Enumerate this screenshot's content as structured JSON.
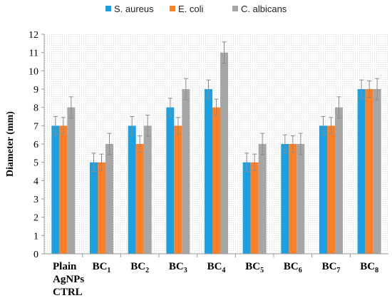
{
  "chart_data": {
    "type": "bar",
    "ylabel": "Diameter (mm)",
    "xlabel": "",
    "ylim": [
      0,
      12
    ],
    "yticks": [
      "0",
      "1",
      "2",
      "3",
      "4",
      "5",
      "6",
      "7",
      "8",
      "9",
      "10",
      "11",
      "12"
    ],
    "legend_position": "top",
    "grid": false,
    "categories": [
      {
        "lines": [
          "Plain",
          "AgNPs",
          "CTRL"
        ]
      },
      {
        "base": "BC",
        "sub": "1"
      },
      {
        "base": "BC",
        "sub": "2"
      },
      {
        "base": "BC",
        "sub": "3"
      },
      {
        "base": "BC",
        "sub": "4"
      },
      {
        "base": "BC",
        "sub": "5"
      },
      {
        "base": "BC",
        "sub": "6"
      },
      {
        "base": "BC",
        "sub": "7"
      },
      {
        "base": "BC",
        "sub": "8"
      }
    ],
    "series": [
      {
        "name": "S. aureus",
        "color": "#1BA1E2",
        "values": [
          7,
          5,
          7,
          8,
          9,
          5,
          6,
          7,
          9
        ],
        "errors": [
          0.5,
          0.5,
          0.5,
          0.5,
          0.5,
          0.5,
          0.5,
          0.5,
          0.5
        ]
      },
      {
        "name": "E. coli",
        "color": "#FF7F27",
        "values": [
          7,
          5,
          6,
          7,
          8,
          5,
          6,
          7,
          9
        ],
        "errors": [
          0.45,
          0.45,
          0.45,
          0.45,
          0.45,
          0.45,
          0.45,
          0.45,
          0.45
        ]
      },
      {
        "name": "C. albicans",
        "color": "#A6A6A6",
        "values": [
          8,
          6,
          7,
          9,
          11,
          6,
          6,
          8,
          9
        ],
        "errors": [
          0.58,
          0.58,
          0.58,
          0.58,
          0.58,
          0.58,
          0.58,
          0.58,
          0.58
        ]
      }
    ]
  }
}
